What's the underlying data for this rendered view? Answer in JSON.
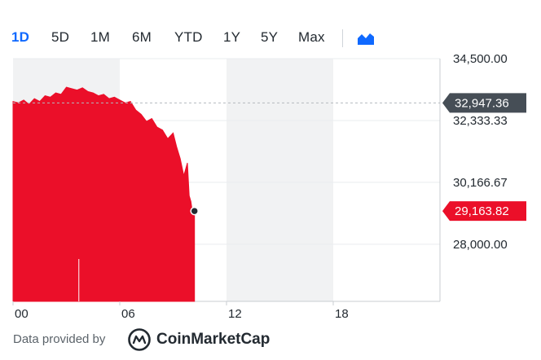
{
  "ranges": [
    "1D",
    "5D",
    "1M",
    "6M",
    "YTD",
    "1Y",
    "5Y",
    "Max"
  ],
  "active_range": "1D",
  "chart_type_icon": "area-chart-icon",
  "colors": {
    "accent": "#0f69ff",
    "series": "#eb0f29",
    "previous_close_badge": "#464e56",
    "grid": "#e9ecef",
    "shade": "#f1f2f3"
  },
  "footer": {
    "prefix": "Data provided by",
    "provider": "CoinMarketCap",
    "provider_icon": "coinmarketcap-logo"
  },
  "chart_data": {
    "type": "area",
    "x_range": [
      0,
      24
    ],
    "x_ticks": [
      0,
      6,
      12,
      18
    ],
    "x_tick_labels": [
      "00",
      "06",
      "12",
      "18"
    ],
    "shaded_hours": [
      [
        0,
        6
      ],
      [
        12,
        18
      ]
    ],
    "y_range": [
      26000,
      34500
    ],
    "y_ticks": [
      34500,
      32333.33,
      30166.67,
      28000
    ],
    "y_tick_labels": [
      "34,500.00",
      "32,333.33",
      "30,166.67",
      "28,000.00"
    ],
    "previous_close": 32947.36,
    "previous_close_label": "32,947.36",
    "last_value": 29163.82,
    "last_value_label": "29,163.82",
    "grid": true,
    "series": [
      {
        "x": [
          0,
          0.3,
          0.6,
          0.9,
          1.2,
          1.5,
          1.8,
          2.1,
          2.4,
          2.7,
          3.0,
          3.3,
          3.6,
          3.9,
          4.2,
          4.5,
          4.8,
          5.1,
          5.4,
          5.7,
          6.0,
          6.3,
          6.6,
          6.9,
          7.2,
          7.5,
          7.8,
          8.1,
          8.4,
          8.7,
          9.0,
          9.2,
          9.4,
          9.6,
          9.8,
          9.9,
          10.0,
          10.1,
          10.2
        ],
        "y": [
          33000,
          32950,
          33050,
          32900,
          33100,
          33000,
          33200,
          33150,
          33300,
          33250,
          33500,
          33450,
          33400,
          33480,
          33350,
          33300,
          33200,
          33250,
          33100,
          33150,
          33050,
          32950,
          33000,
          32700,
          32550,
          32300,
          32400,
          32100,
          32000,
          31700,
          31900,
          31400,
          31000,
          30400,
          30850,
          29700,
          29500,
          29050,
          29163.82
        ]
      }
    ]
  }
}
